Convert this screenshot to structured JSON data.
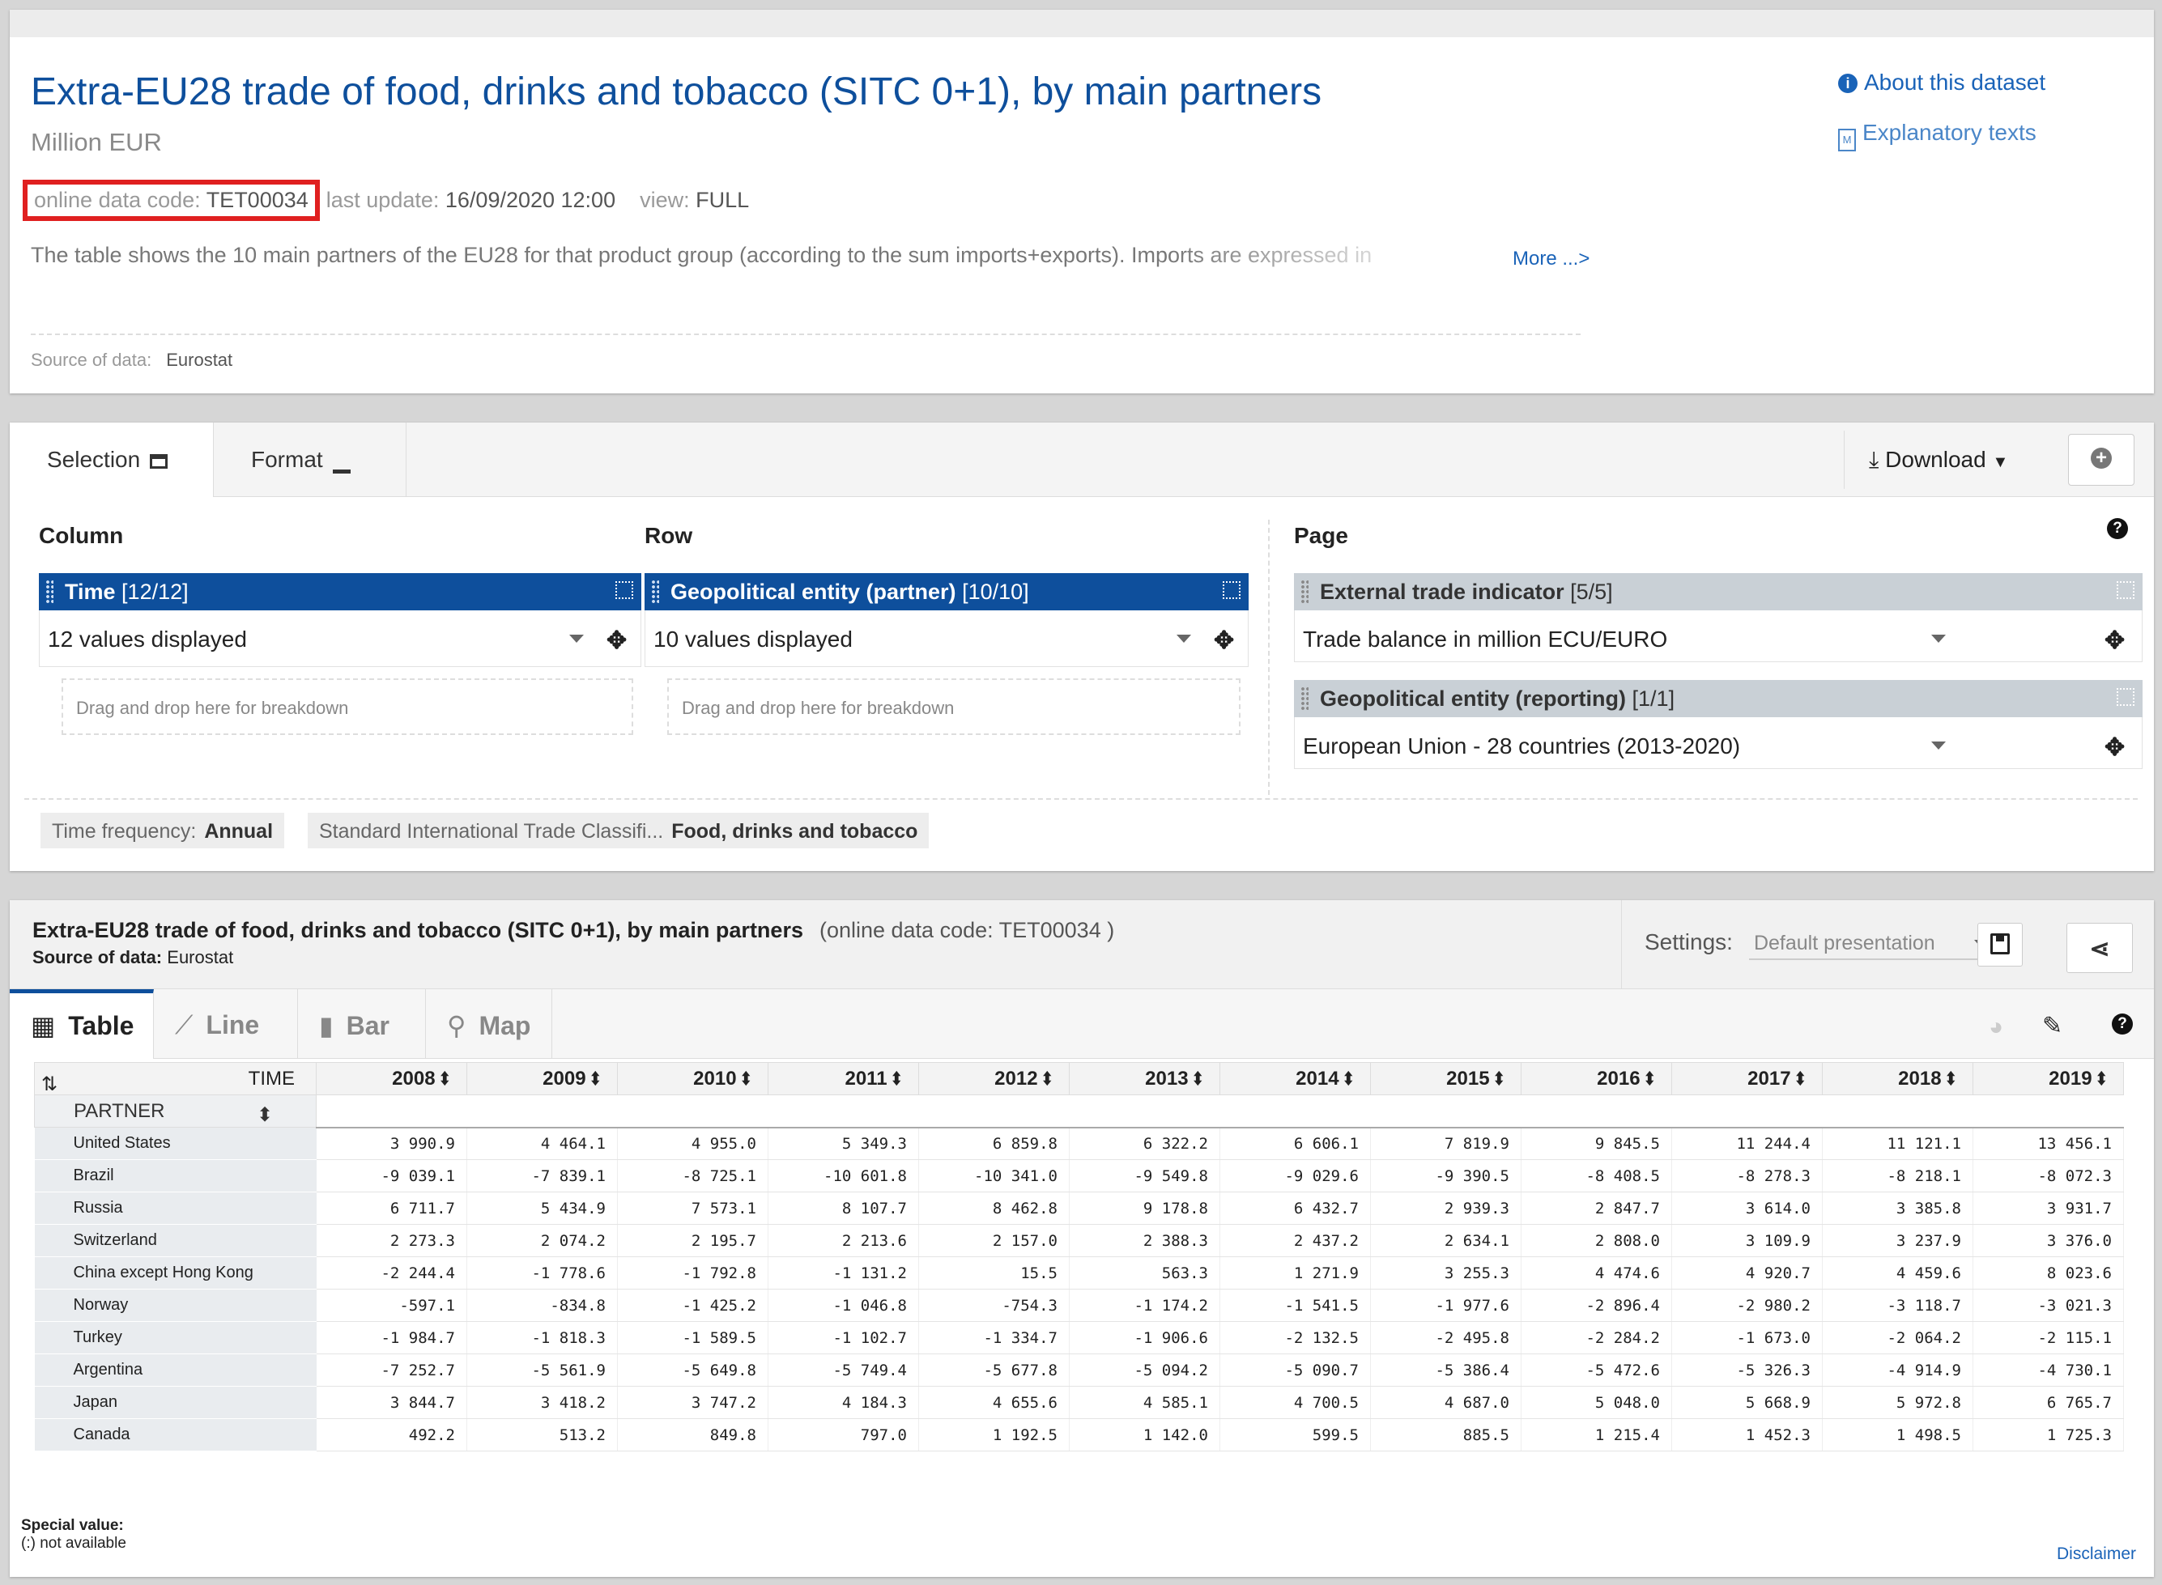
{
  "header": {
    "title": "Extra-EU28 trade of food, drinks and tobacco (SITC 0+1), by main partners",
    "unit": "Million EUR",
    "code_label": "online data code:",
    "code": "TET00034",
    "update_label": "last update:",
    "update": "16/09/2020 12:00",
    "view_label": "view:",
    "view": "FULL",
    "description": "The table shows the 10 main partners of the EU28 for that product group (according to the sum imports+exports). Imports are expressed in",
    "more": "More ...>",
    "source_label": "Source of data:",
    "source": "Eurostat",
    "about": "About this dataset",
    "explanatory": "Explanatory texts"
  },
  "selection": {
    "tab_selection": "Selection",
    "tab_format": "Format",
    "download": "Download",
    "column_label": "Column",
    "row_label": "Row",
    "page_label": "Page",
    "time_name": "Time",
    "time_count": "[12/12]",
    "time_value": "12 values displayed",
    "geo_name": "Geopolitical entity (partner)",
    "geo_count": "[10/10]",
    "geo_value": "10 values displayed",
    "drop_text": "Drag and drop here for breakdown",
    "indicator_name": "External trade indicator",
    "indicator_count": "[5/5]",
    "indicator_value": "Trade balance in million ECU/EURO",
    "reporting_name": "Geopolitical entity (reporting)",
    "reporting_count": "[1/1]",
    "reporting_value": "European Union - 28 countries (2013-2020)",
    "chip1_label": "Time frequency:",
    "chip1_value": "Annual",
    "chip2_label": "Standard International Trade Classifi...",
    "chip2_value": "Food, drinks and tobacco"
  },
  "table_panel": {
    "title": "Extra-EU28 trade of food, drinks and tobacco (SITC 0+1), by main partners",
    "code": "(online data code: TET00034 )",
    "source_label": "Source of data:",
    "source": "Eurostat",
    "settings_label": "Settings:",
    "settings_value": "Default presentation",
    "tabs": [
      "Table",
      "Line",
      "Bar",
      "Map"
    ],
    "time_header": "TIME",
    "partner_header": "PARTNER",
    "special_value_label": "Special value:",
    "special_value": "(:) not available",
    "disclaimer": "Disclaimer"
  },
  "years": [
    "2008",
    "2009",
    "2010",
    "2011",
    "2012",
    "2013",
    "2014",
    "2015",
    "2016",
    "2017",
    "2018",
    "2019"
  ],
  "rows": [
    {
      "partner": "United States",
      "values": [
        "3 990.9",
        "4 464.1",
        "4 955.0",
        "5 349.3",
        "6 859.8",
        "6 322.2",
        "6 606.1",
        "7 819.9",
        "9 845.5",
        "11 244.4",
        "11 121.1",
        "13 456.1"
      ]
    },
    {
      "partner": "Brazil",
      "values": [
        "-9 039.1",
        "-7 839.1",
        "-8 725.1",
        "-10 601.8",
        "-10 341.0",
        "-9 549.8",
        "-9 029.6",
        "-9 390.5",
        "-8 408.5",
        "-8 278.3",
        "-8 218.1",
        "-8 072.3"
      ]
    },
    {
      "partner": "Russia",
      "values": [
        "6 711.7",
        "5 434.9",
        "7 573.1",
        "8 107.7",
        "8 462.8",
        "9 178.8",
        "6 432.7",
        "2 939.3",
        "2 847.7",
        "3 614.0",
        "3 385.8",
        "3 931.7"
      ]
    },
    {
      "partner": "Switzerland",
      "values": [
        "2 273.3",
        "2 074.2",
        "2 195.7",
        "2 213.6",
        "2 157.0",
        "2 388.3",
        "2 437.2",
        "2 634.1",
        "2 808.0",
        "3 109.9",
        "3 237.9",
        "3 376.0"
      ]
    },
    {
      "partner": "China except Hong Kong",
      "values": [
        "-2 244.4",
        "-1 778.6",
        "-1 792.8",
        "-1 131.2",
        "15.5",
        "563.3",
        "1 271.9",
        "3 255.3",
        "4 474.6",
        "4 920.7",
        "4 459.6",
        "8 023.6"
      ]
    },
    {
      "partner": "Norway",
      "values": [
        "-597.1",
        "-834.8",
        "-1 425.2",
        "-1 046.8",
        "-754.3",
        "-1 174.2",
        "-1 541.5",
        "-1 977.6",
        "-2 896.4",
        "-2 980.2",
        "-3 118.7",
        "-3 021.3"
      ]
    },
    {
      "partner": "Turkey",
      "values": [
        "-1 984.7",
        "-1 818.3",
        "-1 589.5",
        "-1 102.7",
        "-1 334.7",
        "-1 906.6",
        "-2 132.5",
        "-2 495.8",
        "-2 284.2",
        "-1 673.0",
        "-2 064.2",
        "-2 115.1"
      ]
    },
    {
      "partner": "Argentina",
      "values": [
        "-7 252.7",
        "-5 561.9",
        "-5 649.8",
        "-5 749.4",
        "-5 677.8",
        "-5 094.2",
        "-5 090.7",
        "-5 386.4",
        "-5 472.6",
        "-5 326.3",
        "-4 914.9",
        "-4 730.1"
      ]
    },
    {
      "partner": "Japan",
      "values": [
        "3 844.7",
        "3 418.2",
        "3 747.2",
        "4 184.3",
        "4 655.6",
        "4 585.1",
        "4 700.5",
        "4 687.0",
        "5 048.0",
        "5 668.9",
        "5 972.8",
        "6 765.7"
      ]
    },
    {
      "partner": "Canada",
      "values": [
        "492.2",
        "513.2",
        "849.8",
        "797.0",
        "1 192.5",
        "1 142.0",
        "599.5",
        "885.5",
        "1 215.4",
        "1 452.3",
        "1 498.5",
        "1 725.3"
      ]
    }
  ]
}
